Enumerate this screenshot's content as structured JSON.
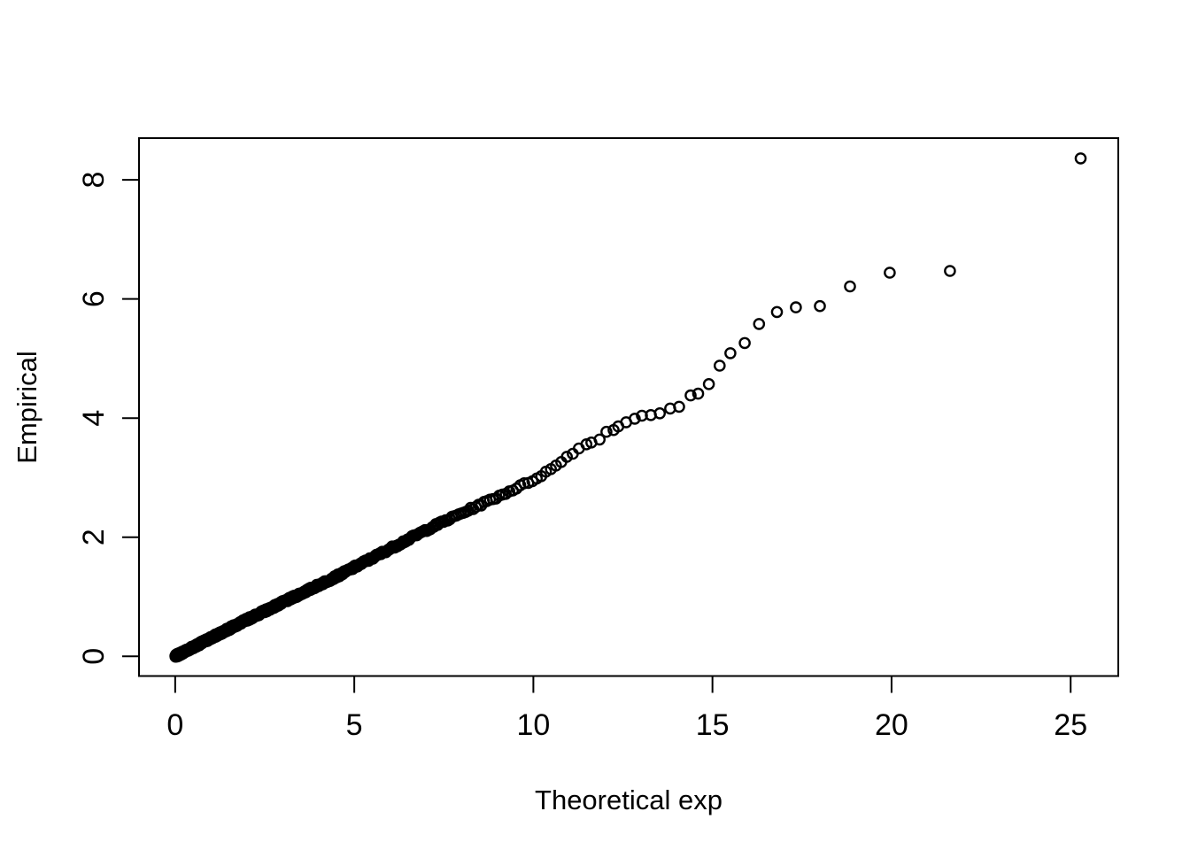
{
  "figure": {
    "background_color": "#ffffff",
    "foreground_color": "#000000"
  },
  "chart_data": {
    "type": "scatter",
    "title": "",
    "xlabel": "Theoretical exp",
    "ylabel": "Empirical",
    "xlim": [
      -1.01,
      26.33
    ],
    "ylim": [
      -0.33,
      8.7
    ],
    "xticks": [
      0,
      5,
      10,
      15,
      20,
      25
    ],
    "yticks": [
      0,
      2,
      4,
      6,
      8
    ],
    "grid": false,
    "legend": null,
    "marker": "open-circle",
    "marker_color": "#000000",
    "description": "Exponential Q-Q plot: open-circle points hug a straight line of slope ~0.30 through the origin; heavily overplotted (solid band) from x=0 to x~11.5, individually visible points in the upper tail up to (25.28, 8.36).",
    "trend": {
      "slope": 0.3,
      "intercept": 0
    },
    "dense_points_generator": {
      "n": 550,
      "exp_scale": 3.3,
      "u_max": 0.9689,
      "slope": 0.3,
      "jitter": 0.022,
      "seed": 7,
      "wiggle_controls": [
        [
          0,
          0.0
        ],
        [
          2,
          0.015
        ],
        [
          4.5,
          -0.01
        ],
        [
          7.2,
          0.02
        ],
        [
          9.0,
          -0.02
        ],
        [
          9.94,
          -0.04
        ],
        [
          10.6,
          0.0
        ],
        [
          11.0,
          0.08
        ],
        [
          11.45,
          0.13
        ]
      ]
    },
    "tail_points": [
      [
        11.48,
        3.56
      ],
      [
        11.62,
        3.59
      ],
      [
        11.85,
        3.64
      ],
      [
        12.04,
        3.77
      ],
      [
        12.24,
        3.8
      ],
      [
        12.37,
        3.86
      ],
      [
        12.59,
        3.93
      ],
      [
        12.83,
        3.99
      ],
      [
        13.03,
        4.04
      ],
      [
        13.28,
        4.05
      ],
      [
        13.53,
        4.08
      ],
      [
        13.82,
        4.16
      ],
      [
        14.07,
        4.19
      ],
      [
        14.39,
        4.38
      ],
      [
        14.6,
        4.41
      ],
      [
        14.9,
        4.57
      ],
      [
        15.2,
        4.88
      ],
      [
        15.5,
        5.09
      ],
      [
        15.9,
        5.26
      ],
      [
        16.3,
        5.58
      ],
      [
        16.8,
        5.78
      ],
      [
        17.33,
        5.86
      ],
      [
        18.0,
        5.88
      ],
      [
        18.84,
        6.21
      ],
      [
        19.95,
        6.44
      ],
      [
        21.63,
        6.47
      ],
      [
        25.28,
        8.36
      ]
    ]
  }
}
